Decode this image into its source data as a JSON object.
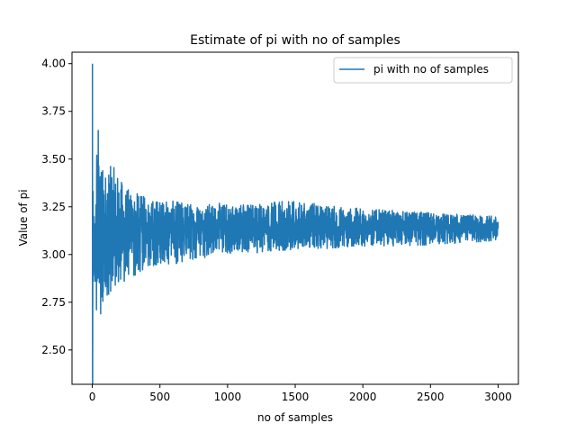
{
  "chart_data": {
    "type": "line",
    "title": "Estimate of pi with no of samples",
    "xlabel": "no of samples",
    "ylabel": "Value of pi",
    "xlim": [
      -150,
      3150
    ],
    "ylim": [
      2.32,
      4.06
    ],
    "xticks": [
      0,
      500,
      1000,
      1500,
      2000,
      2500,
      3000
    ],
    "yticks": [
      2.5,
      2.75,
      3.0,
      3.25,
      3.5,
      3.75,
      4.0
    ],
    "ytick_labels": [
      "2.50",
      "2.75",
      "3.00",
      "3.25",
      "3.50",
      "3.75",
      "4.00"
    ],
    "legend_position": "upper right",
    "grid": false,
    "series": [
      {
        "name": "pi with no of samples",
        "color": "#1f77b4",
        "x_start": 1,
        "x_end": 3000,
        "start_values": [
          4.0,
          2.0,
          2.67,
          3.0,
          3.2,
          3.33,
          2.86,
          3.0,
          3.11,
          3.2,
          2.91,
          3.0,
          3.08,
          3.14,
          2.93,
          3.0,
          3.06,
          2.89,
          3.16,
          3.0,
          2.86,
          3.09,
          3.13,
          3.17,
          3.2,
          2.92,
          3.26,
          3.14,
          3.17,
          3.07,
          2.71,
          3.38,
          3.52,
          3.29,
          2.86,
          3.22,
          3.24,
          3.26,
          3.49,
          3.1
        ],
        "envelope_note": "approximate min/max spread per sample count",
        "envelope": [
          {
            "x": 1,
            "min": 2.35,
            "max": 4.0
          },
          {
            "x": 20,
            "min": 2.45,
            "max": 3.55
          },
          {
            "x": 40,
            "min": 2.55,
            "max": 3.68
          },
          {
            "x": 80,
            "min": 2.72,
            "max": 3.45
          },
          {
            "x": 150,
            "min": 2.82,
            "max": 3.47
          },
          {
            "x": 250,
            "min": 2.86,
            "max": 3.35
          },
          {
            "x": 400,
            "min": 2.93,
            "max": 3.3
          },
          {
            "x": 600,
            "min": 2.95,
            "max": 3.28
          },
          {
            "x": 800,
            "min": 2.98,
            "max": 3.27
          },
          {
            "x": 1000,
            "min": 3.0,
            "max": 3.27
          },
          {
            "x": 1500,
            "min": 3.02,
            "max": 3.28
          },
          {
            "x": 2000,
            "min": 3.04,
            "max": 3.24
          },
          {
            "x": 2500,
            "min": 3.05,
            "max": 3.22
          },
          {
            "x": 3000,
            "min": 3.07,
            "max": 3.2
          }
        ]
      }
    ]
  }
}
